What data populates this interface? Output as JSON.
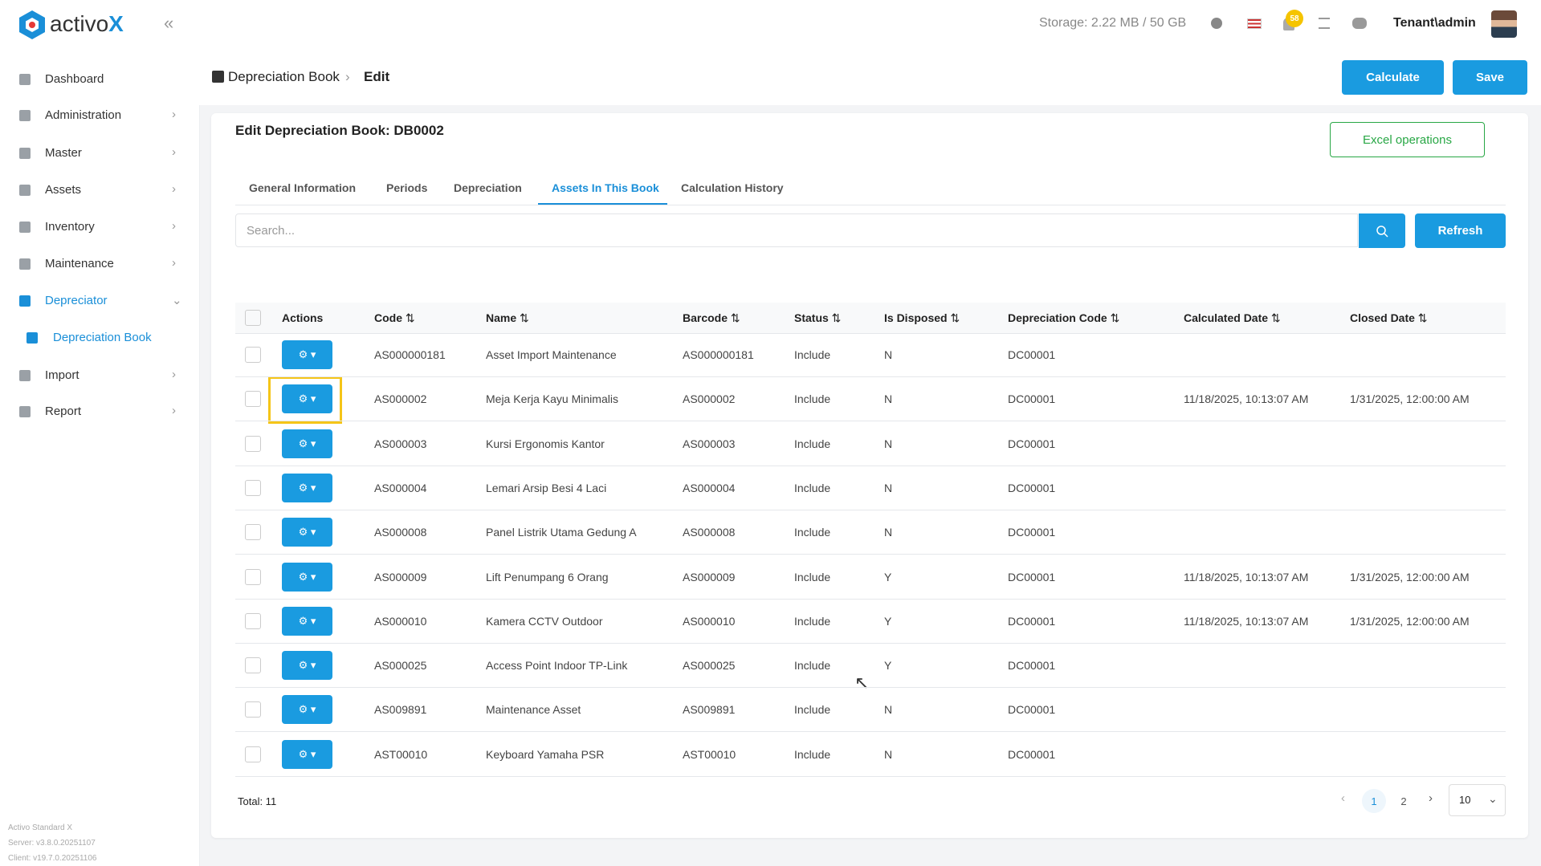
{
  "brand": {
    "name": "activo",
    "accent": "X"
  },
  "topbar": {
    "storage": "Storage: 2.22 MB / 50 GB",
    "notifications": "58",
    "user": "Tenant\\admin"
  },
  "sidebar": {
    "items": [
      {
        "label": "Dashboard"
      },
      {
        "label": "Administration"
      },
      {
        "label": "Master"
      },
      {
        "label": "Assets"
      },
      {
        "label": "Inventory"
      },
      {
        "label": "Maintenance"
      },
      {
        "label": "Depreciator",
        "active": true
      },
      {
        "label": "Depreciation Book",
        "sub": true
      },
      {
        "label": "Import"
      },
      {
        "label": "Report"
      }
    ],
    "footer": [
      "Activo Standard X",
      "Server: v3.8.0.20251107",
      "Client: v19.7.0.20251106"
    ]
  },
  "breadcrumb": [
    "Depreciation Book",
    "Edit"
  ],
  "buttons": {
    "calculate": "Calculate",
    "save": "Save"
  },
  "card": {
    "title": "Edit Depreciation Book: DB0002",
    "excel": "Excel operations",
    "tabs": [
      "General Information",
      "Periods",
      "Depreciation",
      "Assets In This Book",
      "Calculation History"
    ],
    "active_tab": 3,
    "search_placeholder": "Search...",
    "refresh": "Refresh"
  },
  "table": {
    "headers": [
      "Actions",
      "Code",
      "Name",
      "Barcode",
      "Status",
      "Is Disposed",
      "Depreciation Code",
      "Calculated Date",
      "Closed Date"
    ],
    "rows": [
      {
        "code": "AS000000181",
        "name": "Asset Import Maintenance",
        "barcode": "AS000000181",
        "status": "Include",
        "disposed": "N",
        "dep_code": "DC00001"
      },
      {
        "code": "AS000002",
        "name": "Meja Kerja Kayu Minimalis",
        "barcode": "AS000002",
        "status": "Include",
        "disposed": "N",
        "dep_code": "DC00001",
        "calculated": "11/18/2025, 10:13:07 AM",
        "closed": "1/31/2025, 12:00:00 AM"
      },
      {
        "code": "AS000003",
        "name": "Kursi Ergonomis Kantor",
        "barcode": "AS000003",
        "status": "Include",
        "disposed": "N",
        "dep_code": "DC00001"
      },
      {
        "code": "AS000004",
        "name": "Lemari Arsip Besi 4 Laci",
        "barcode": "AS000004",
        "status": "Include",
        "disposed": "N",
        "dep_code": "DC00001"
      },
      {
        "code": "AS000008",
        "name": "Panel Listrik Utama Gedung A",
        "barcode": "AS000008",
        "status": "Include",
        "disposed": "N",
        "dep_code": "DC00001"
      },
      {
        "code": "AS000009",
        "name": "Lift Penumpang 6 Orang",
        "barcode": "AS000009",
        "status": "Include",
        "disposed": "Y",
        "dep_code": "DC00001",
        "calculated": "11/18/2025, 10:13:07 AM",
        "closed": "1/31/2025, 12:00:00 AM"
      },
      {
        "code": "AS000010",
        "name": "Kamera CCTV Outdoor",
        "barcode": "AS000010",
        "status": "Include",
        "disposed": "Y",
        "dep_code": "DC00001",
        "calculated": "11/18/2025, 10:13:07 AM",
        "closed": "1/31/2025, 12:00:00 AM"
      },
      {
        "code": "AS000025",
        "name": "Access Point Indoor TP-Link",
        "barcode": "AS000025",
        "status": "Include",
        "disposed": "Y",
        "dep_code": "DC00001"
      },
      {
        "code": "AS009891",
        "name": "Maintenance Asset",
        "barcode": "AS009891",
        "status": "Include",
        "disposed": "N",
        "dep_code": "DC00001"
      },
      {
        "code": "AST00010",
        "name": "Keyboard Yamaha PSR",
        "barcode": "AST00010",
        "status": "Include",
        "disposed": "N",
        "dep_code": "DC00001"
      }
    ]
  },
  "footer": {
    "total": "Total: 11",
    "pages": [
      "1",
      "2"
    ],
    "page_size": "10"
  }
}
